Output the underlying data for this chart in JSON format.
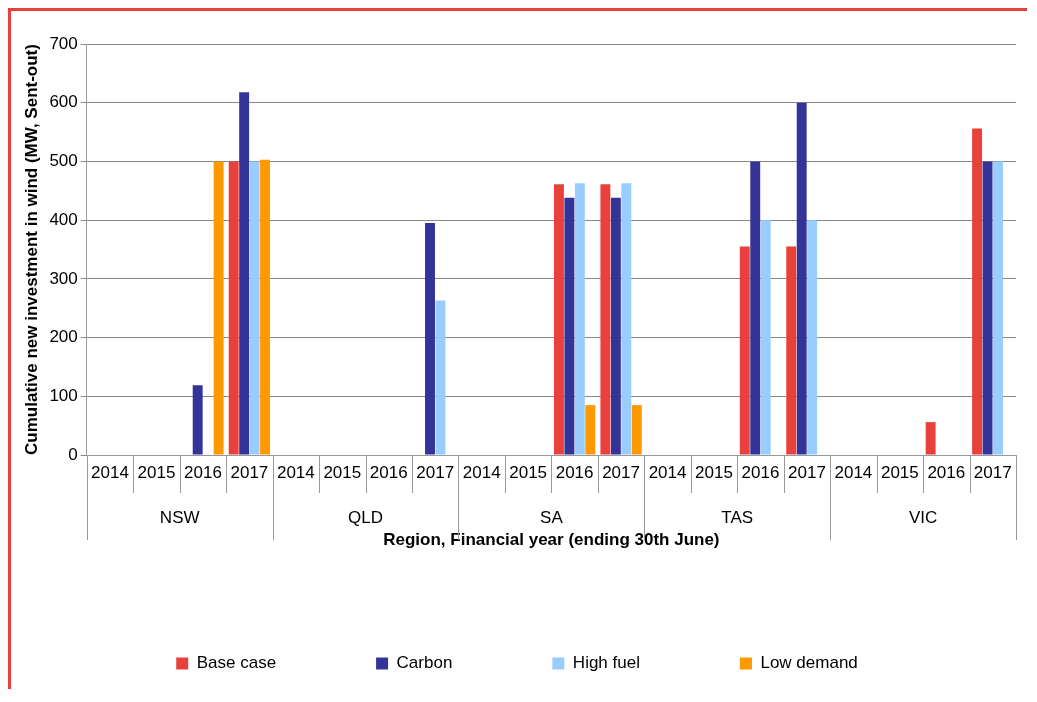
{
  "chart_data": {
    "type": "bar",
    "xlabel": "Region, Financial year (ending 30th June)",
    "ylabel": "Cumulative new investment in wind (MW, Sent-out)",
    "categories": [
      "2014",
      "2015",
      "2016",
      "2017",
      "2014",
      "2015",
      "2016",
      "2017",
      "2014",
      "2015",
      "2016",
      "2017",
      "2014",
      "2015",
      "2016",
      "2017",
      "2014",
      "2015",
      "2016",
      "2017"
    ],
    "annotations": [
      "NSW",
      "QLD",
      "SA",
      "TAS",
      "VIC"
    ],
    "series": [
      {
        "name": "Base case",
        "color": "#e8403a",
        "values": [
          null,
          null,
          null,
          500,
          null,
          null,
          null,
          null,
          null,
          null,
          461,
          461,
          null,
          null,
          355,
          355,
          null,
          null,
          56,
          556
        ]
      },
      {
        "name": "Carbon",
        "color": "#333399",
        "values": [
          null,
          null,
          119,
          618,
          null,
          null,
          null,
          395,
          null,
          null,
          438,
          438,
          null,
          null,
          500,
          600,
          null,
          null,
          null,
          500
        ]
      },
      {
        "name": "High fuel",
        "color": "#99ccff",
        "values": [
          null,
          null,
          null,
          500,
          null,
          null,
          null,
          263,
          null,
          null,
          463,
          463,
          null,
          null,
          400,
          400,
          null,
          null,
          null,
          500
        ]
      },
      {
        "name": "Low demand",
        "color": "#ff9900",
        "values": [
          null,
          null,
          500,
          503,
          null,
          null,
          null,
          null,
          null,
          null,
          85,
          85,
          null,
          null,
          null,
          null,
          null,
          null,
          null,
          null
        ]
      }
    ],
    "ylim": [
      0,
      700
    ],
    "yticks": [
      0,
      100,
      200,
      300,
      400,
      500,
      600,
      700
    ],
    "grid": "y",
    "legend": "bottom"
  }
}
